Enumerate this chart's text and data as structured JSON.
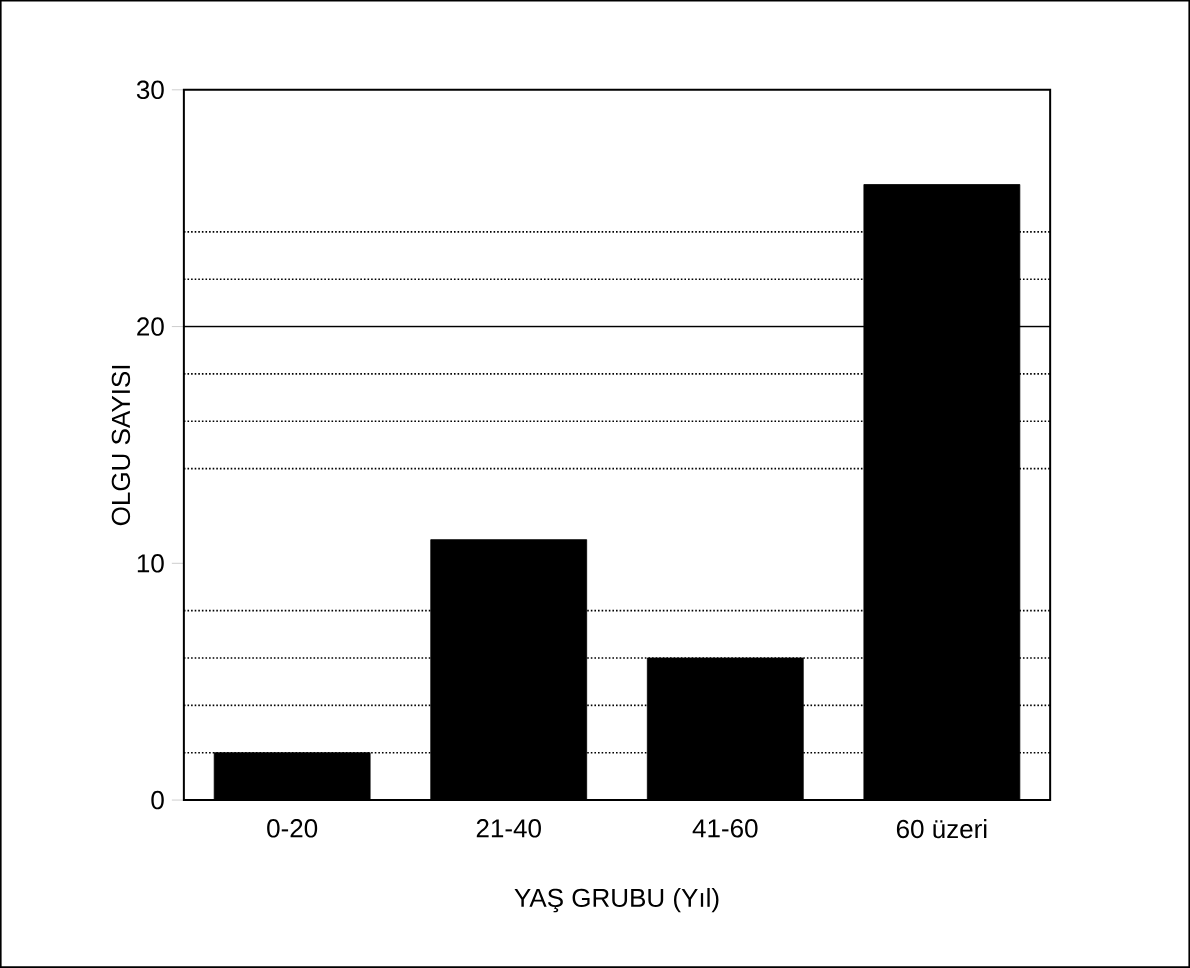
{
  "chart_data": {
    "type": "bar",
    "xlabel": "YAŞ GRUBU (Yıl)",
    "ylabel": "OLGU SAYISI",
    "categories": [
      "0-20",
      "21-40",
      "41-60",
      "60 üzeri"
    ],
    "values": [
      2,
      11,
      6,
      26
    ],
    "color": "#000000",
    "ylim": [
      0,
      30
    ],
    "yticks": [
      0,
      10,
      20,
      30
    ],
    "grid": false,
    "ref_lines": [
      {
        "axis": "y",
        "value": 20,
        "line_style": "solid",
        "color": "#000000"
      },
      {
        "axis": "y",
        "value": 2,
        "line_style": "dotted",
        "color": "#000000"
      },
      {
        "axis": "y",
        "value": 4,
        "line_style": "dotted",
        "color": "#000000"
      },
      {
        "axis": "y",
        "value": 6,
        "line_style": "dotted",
        "color": "#000000"
      },
      {
        "axis": "y",
        "value": 8,
        "line_style": "dotted",
        "color": "#000000"
      },
      {
        "axis": "y",
        "value": 14,
        "line_style": "dotted",
        "color": "#000000"
      },
      {
        "axis": "y",
        "value": 16,
        "line_style": "dotted",
        "color": "#000000"
      },
      {
        "axis": "y",
        "value": 18,
        "line_style": "dotted",
        "color": "#000000"
      },
      {
        "axis": "y",
        "value": 22,
        "line_style": "dotted",
        "color": "#000000"
      },
      {
        "axis": "y",
        "value": 24,
        "line_style": "dotted",
        "color": "#000000"
      }
    ]
  }
}
